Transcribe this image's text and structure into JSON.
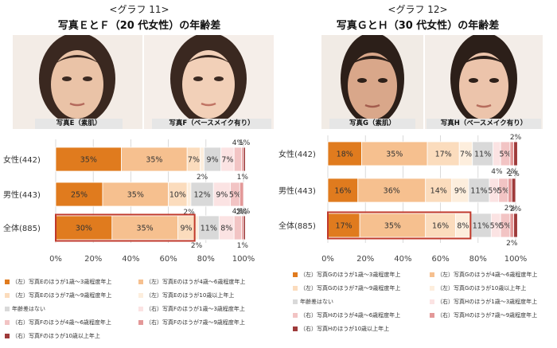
{
  "colors": {
    "L1": "#e07b1e",
    "L2": "#f6c08f",
    "L3": "#fbdcbd",
    "L4": "#fdeedd",
    "N": "#d9d9d9",
    "R1": "#fbe3e3",
    "R2": "#f2c4c4",
    "R3": "#e39898",
    "R4": "#9e3a3a",
    "R5": "#5c1a1a"
  },
  "left": {
    "caption": "<グラフ 11>",
    "title": "写真ＥとＦ（20 代女性）の年齢差",
    "photo_a_label": "写真E（素肌）",
    "photo_b_label": "写真F（ベースメイク有り）",
    "legend": [
      {
        "key": "L1",
        "label": "（左）写真Eのほうが1歳～3歳程度年上"
      },
      {
        "key": "L2",
        "label": "（左）写真Eのほうが4歳～6歳程度年上"
      },
      {
        "key": "L3",
        "label": "（左）写真Eのほうが7歳～9歳程度年上"
      },
      {
        "key": "L4",
        "label": "（左）写真Eのほうが10歳以上年上"
      },
      {
        "key": "N",
        "label": "年齢差はない"
      },
      {
        "key": "R1",
        "label": "（右）写真Fのほうが1歳～3歳程度年上"
      },
      {
        "key": "R2",
        "label": "（右）写真Fのほうが4歳～6歳程度年上"
      },
      {
        "key": "R3",
        "label": "（右）写真Fのほうが7歳～9歳程度年上"
      },
      {
        "key": "R4",
        "label": "（右）写真Fのほうが10歳以上年上"
      }
    ]
  },
  "right": {
    "caption": "<グラフ 12>",
    "title": "写真ＧとＨ（30 代女性）の年齢差",
    "photo_a_label": "写真G（素肌）",
    "photo_b_label": "写真H（ベースメイク有り）",
    "legend": [
      {
        "key": "L1",
        "label": "（左）写真Gのほうが1歳～3歳程度年上"
      },
      {
        "key": "L2",
        "label": "（左）写真Gのほうが4歳～6歳程度年上"
      },
      {
        "key": "L3",
        "label": "（左）写真Gのほうが7歳～9歳程度年上"
      },
      {
        "key": "L4",
        "label": "（左）写真Gのほうが10歳以上年上"
      },
      {
        "key": "N",
        "label": "年齢差はない"
      },
      {
        "key": "R1",
        "label": "（右）写真Hのほうが1歳～3歳程度年上"
      },
      {
        "key": "R2",
        "label": "（右）写真Hのほうが4歳～6歳程度年上"
      },
      {
        "key": "R3",
        "label": "（右）写真Hのほうが7歳～9歳程度年上"
      },
      {
        "key": "R4",
        "label": "（右）写真Hのほうが10歳以上年上"
      }
    ]
  },
  "chart_data": [
    {
      "type": "bar",
      "orientation": "horizontal",
      "stacked": true,
      "title": "写真ＥとＦ（20 代女性）の年齢差",
      "categories": [
        "女性(442)",
        "男性(443)",
        "全体(885)"
      ],
      "xlim": [
        0,
        100
      ],
      "xticks": [
        "0%",
        "20%",
        "40%",
        "60%",
        "80%",
        "100%"
      ],
      "highlight": [
        {
          "category": "全体(885)",
          "from": 0,
          "to": 74
        }
      ],
      "segments": [
        {
          "key": "L1",
          "values": [
            35,
            25,
            30
          ]
        },
        {
          "key": "L2",
          "values": [
            35,
            35,
            35
          ]
        },
        {
          "key": "L3",
          "values": [
            7,
            10,
            9
          ]
        },
        {
          "key": "L4",
          "values": [
            2,
            2,
            2
          ]
        },
        {
          "key": "N",
          "values": [
            9,
            12,
            11
          ]
        },
        {
          "key": "R1",
          "values": [
            7,
            9,
            8
          ]
        },
        {
          "key": "R2",
          "values": [
            4,
            5,
            4
          ]
        },
        {
          "key": "R3",
          "values": [
            1,
            2,
            1
          ]
        },
        {
          "key": "R4",
          "values": [
            1,
            0,
            1
          ]
        }
      ],
      "labels": [
        [
          "35%",
          "35%",
          "7%",
          "2%",
          "9%",
          "7%",
          "4%",
          "1%",
          "1%"
        ],
        [
          "25%",
          "35%",
          "10%",
          "2%",
          "12%",
          "9%",
          "5%",
          "2%",
          ""
        ],
        [
          "30%",
          "35%",
          "9%",
          "2%",
          "11%",
          "8%",
          "4%",
          "1%",
          "1%"
        ]
      ]
    },
    {
      "type": "bar",
      "orientation": "horizontal",
      "stacked": true,
      "title": "写真ＧとＨ（30 代女性）の年齢差",
      "categories": [
        "女性(442)",
        "男性(443)",
        "全体(885)"
      ],
      "xlim": [
        0,
        100
      ],
      "xticks": [
        "0%",
        "20%",
        "40%",
        "60%",
        "80%",
        "100%"
      ],
      "highlight": [
        {
          "category": "全体(885)",
          "from": 0,
          "to": 76
        }
      ],
      "segments": [
        {
          "key": "L1",
          "values": [
            18,
            16,
            17
          ]
        },
        {
          "key": "L2",
          "values": [
            35,
            36,
            35
          ]
        },
        {
          "key": "L3",
          "values": [
            17,
            14,
            16
          ]
        },
        {
          "key": "L4",
          "values": [
            7,
            9,
            8
          ]
        },
        {
          "key": "N",
          "values": [
            11,
            11,
            11
          ]
        },
        {
          "key": "R1",
          "values": [
            4,
            5,
            5
          ]
        },
        {
          "key": "R2",
          "values": [
            5,
            5,
            5
          ]
        },
        {
          "key": "R3",
          "values": [
            2,
            2,
            2
          ]
        },
        {
          "key": "R4",
          "values": [
            2,
            2,
            2
          ]
        }
      ],
      "labels": [
        [
          "18%",
          "35%",
          "17%",
          "7%",
          "11%",
          "4%",
          "5%",
          "2%",
          "2%"
        ],
        [
          "16%",
          "36%",
          "14%",
          "9%",
          "11%",
          "5%",
          "5%",
          "2%",
          "2%"
        ],
        [
          "17%",
          "35%",
          "16%",
          "8%",
          "11%",
          "5%",
          "5%",
          "2%",
          "2%"
        ]
      ]
    }
  ]
}
